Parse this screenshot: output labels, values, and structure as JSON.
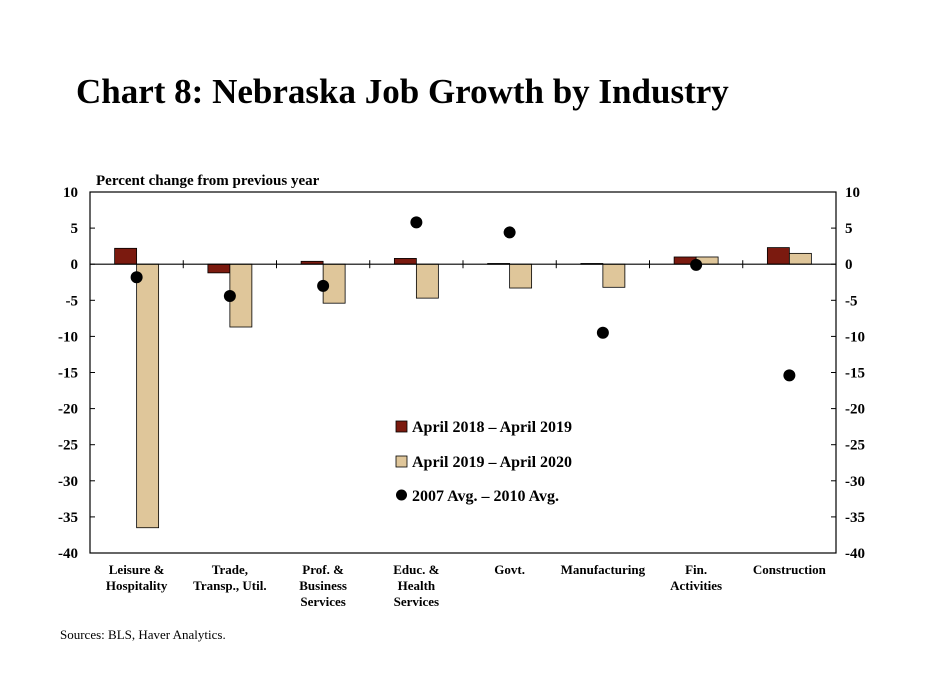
{
  "title": "Chart 8: Nebraska Job Growth by Industry",
  "sources": "Sources: BLS, Haver Analytics.",
  "chart_data": {
    "type": "bar",
    "ylabel": "Percent change from previous year",
    "ylim": [
      -40,
      10
    ],
    "yticks": [
      10,
      5,
      0,
      -5,
      -10,
      -15,
      -20,
      -25,
      -30,
      -35,
      -40
    ],
    "secondary_axis": true,
    "legend_position": "center",
    "categories": [
      [
        "Leisure &",
        "Hospitality"
      ],
      [
        "Trade,",
        "Transp., Util."
      ],
      [
        "Prof. &",
        "Business",
        "Services"
      ],
      [
        "Educ. &",
        "Health",
        "Services"
      ],
      [
        "Govt."
      ],
      [
        "Manufacturing"
      ],
      [
        "Fin.",
        "Activities"
      ],
      [
        "Construction"
      ]
    ],
    "series": [
      {
        "name": "April 2018 – April 2019",
        "kind": "bar",
        "color": "#7b1a0f",
        "values": [
          2.2,
          -1.2,
          0.4,
          0.8,
          0.1,
          0.1,
          1.0,
          2.3
        ]
      },
      {
        "name": "April 2019 – April 2020",
        "kind": "bar",
        "color": "#dfc69a",
        "values": [
          -36.5,
          -8.7,
          -5.4,
          -4.7,
          -3.3,
          -3.2,
          1.0,
          1.5
        ]
      },
      {
        "name": "2007 Avg. – 2010 Avg.",
        "kind": "scatter",
        "color": "#000000",
        "values": [
          -1.8,
          -4.4,
          -3.0,
          5.8,
          4.4,
          -9.5,
          -0.1,
          -15.4
        ]
      }
    ]
  }
}
